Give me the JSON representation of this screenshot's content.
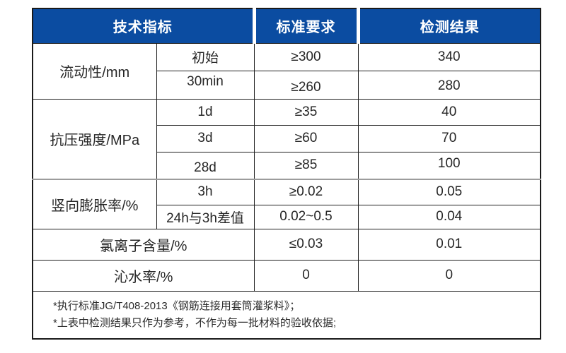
{
  "colors": {
    "header_bg": "#0B4CA1",
    "header_text": "#FFFFFF",
    "border_dark": "#1A1A1A",
    "border_gray": "#9C9C9C",
    "body_text": "#262626",
    "page_bg": "#FFFFFF"
  },
  "table": {
    "header": {
      "columns": [
        "技术指标",
        "标准要求",
        "检测结果"
      ]
    },
    "groups": [
      {
        "label": "流动性/mm",
        "rows": [
          {
            "sub": "初始",
            "standard": "≥300",
            "result": "340"
          },
          {
            "sub": "30min",
            "standard": "≥260",
            "result": "280"
          }
        ]
      },
      {
        "label": "抗压强度/MPa",
        "rows": [
          {
            "sub": "1d",
            "standard": "≥35",
            "result": "40"
          },
          {
            "sub": "3d",
            "standard": "≥60",
            "result": "70"
          },
          {
            "sub": "28d",
            "standard": "≥85",
            "result": "100"
          }
        ]
      },
      {
        "label": "竖向膨胀率/%",
        "rows": [
          {
            "sub": "3h",
            "standard": "≥0.02",
            "result": "0.05"
          },
          {
            "sub": "24h与3h差值",
            "standard": "0.02~0.5",
            "result": "0.04"
          }
        ]
      }
    ],
    "simple_rows": [
      {
        "label": "氯离子含量/%",
        "standard": "≤0.03",
        "result": "0.01"
      },
      {
        "label": "沁水率/%",
        "standard": "0",
        "result": "0"
      }
    ],
    "notes": [
      "*执行标准JG/T408-2013《钢筋连接用套筒灌浆料》；",
      "*上表中检测结果只作为参考，不作为每一批材料的验收依据;"
    ]
  }
}
